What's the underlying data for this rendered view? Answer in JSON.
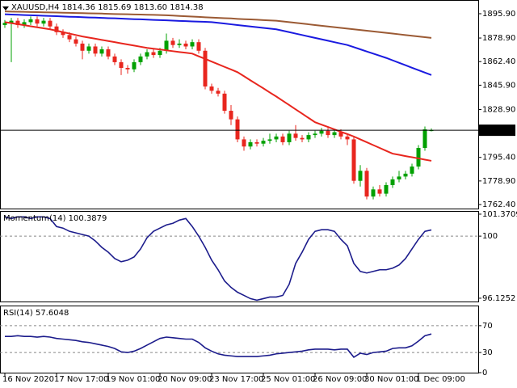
{
  "chart_data": [
    {
      "type": "candlestick",
      "title": "XAUUSD,H4  1814.36 1815.69 1813.60 1814.38",
      "categories": [
        "16 Nov 2020",
        null,
        null,
        null,
        null,
        null,
        null,
        null,
        "17 Nov 17:00",
        null,
        null,
        null,
        null,
        null,
        null,
        null,
        "19 Nov 01:00",
        null,
        null,
        null,
        null,
        null,
        null,
        null,
        "20 Nov 09:00",
        null,
        null,
        null,
        null,
        null,
        null,
        null,
        "23 Nov 17:00",
        null,
        null,
        null,
        null,
        null,
        null,
        null,
        "25 Nov 01:00",
        null,
        null,
        null,
        null,
        null,
        null,
        null,
        "26 Nov 09:00",
        null,
        null,
        null,
        null,
        null,
        null,
        null,
        "30 Nov 01:00",
        null,
        null,
        null,
        null,
        null,
        null,
        null,
        "1 Dec 09:00",
        null,
        null
      ],
      "open": [
        1888,
        1889.5,
        1891,
        1888,
        1890,
        1892,
        1889,
        1891,
        1887,
        1883,
        1881,
        1878,
        1875,
        1870,
        1873,
        1868,
        1871,
        1866,
        1862,
        1858,
        1857,
        1862,
        1866,
        1869,
        1867,
        1870,
        1877,
        1874,
        1875,
        1873,
        1876,
        1870,
        1845,
        1842,
        1840,
        1828,
        1822,
        1808,
        1803,
        1806,
        1805,
        1807,
        1808,
        1810,
        1806,
        1812,
        1809,
        1808,
        1811,
        1812,
        1814,
        1811,
        1813,
        1810,
        1808,
        1779,
        1786,
        1768,
        1773,
        1770,
        1776,
        1780,
        1782,
        1784,
        1789,
        1802,
        1814.36
      ],
      "high": [
        1891.5,
        1893,
        1893,
        1892,
        1894,
        1894,
        1893,
        1893,
        1889,
        1885,
        1883,
        1880,
        1877,
        1875,
        1875,
        1873,
        1873,
        1868,
        1864,
        1860,
        1864,
        1868,
        1871,
        1871,
        1872,
        1882,
        1879,
        1878,
        1877,
        1878,
        1878,
        1872,
        1847,
        1844,
        1842,
        1832,
        1824,
        1810,
        1808,
        1808,
        1809,
        1812,
        1812,
        1812,
        1814,
        1818,
        1811,
        1813,
        1814,
        1816,
        1816,
        1815,
        1815,
        1812,
        1810,
        1790,
        1788,
        1775,
        1776,
        1778,
        1782,
        1786,
        1786,
        1791,
        1804,
        1817,
        1815.69
      ],
      "low": [
        1886,
        1862,
        1886,
        1886,
        1888,
        1887,
        1887,
        1885,
        1881,
        1879,
        1876,
        1873,
        1864,
        1868,
        1866,
        1866,
        1864,
        1860,
        1853,
        1854,
        1855,
        1860,
        1864,
        1865,
        1865,
        1868,
        1872,
        1872,
        1871,
        1871,
        1868,
        1843,
        1840,
        1838,
        1826,
        1818,
        1806,
        1800,
        1801,
        1803,
        1803,
        1805,
        1806,
        1804,
        1804,
        1807,
        1806,
        1806,
        1809,
        1810,
        1809,
        1809,
        1808,
        1804,
        1777,
        1775,
        1766,
        1766,
        1768,
        1768,
        1774,
        1778,
        1780,
        1782,
        1787,
        1800,
        1813.6
      ],
      "close": [
        1889.5,
        1891,
        1888,
        1890,
        1892,
        1889,
        1891,
        1887,
        1883,
        1881,
        1878,
        1875,
        1870,
        1873,
        1868,
        1871,
        1866,
        1862,
        1858,
        1857,
        1862,
        1866,
        1869,
        1867,
        1870,
        1877,
        1874,
        1875,
        1873,
        1876,
        1870,
        1845,
        1842,
        1840,
        1828,
        1822,
        1808,
        1803,
        1806,
        1805,
        1807,
        1808,
        1810,
        1806,
        1812,
        1809,
        1808,
        1811,
        1812,
        1814,
        1811,
        1813,
        1810,
        1808,
        1779,
        1786,
        1768,
        1773,
        1770,
        1776,
        1780,
        1782,
        1784,
        1789,
        1802,
        1815,
        1814.38
      ],
      "up_color": "#00a000",
      "down_color": "#e8261e",
      "series": [
        {
          "color": "#9b5a34",
          "values": [
            1897.5,
            1897.4,
            1897.3,
            1897.2,
            1897.1,
            1897,
            1896.9,
            1896.8,
            1896.7,
            1896.6,
            1896.5,
            1896.4,
            1896.3,
            1896.2,
            1896.1,
            1896,
            1895.8,
            1895.7,
            1895.6,
            1895.5,
            1895.4,
            1895.3,
            1895.2,
            1895.1,
            1895,
            1894.8,
            1894.6,
            1894.3,
            1894.1,
            1893.9,
            1893.7,
            1893.4,
            1893.2,
            1893,
            1892.8,
            1892.6,
            1892.3,
            1892.1,
            1891.9,
            1891.7,
            1891.4,
            1891.2,
            1891,
            1890.5,
            1890,
            1889.5,
            1889,
            1888.5,
            1888,
            1887.5,
            1887,
            1886.5,
            1886,
            1885.5,
            1885,
            1884.5,
            1884,
            1883.5,
            1883,
            1882.5,
            1882,
            1881.5,
            1881,
            1880.5,
            1880,
            1879.5,
            1879
          ]
        },
        {
          "color": "#1a1ae0",
          "values": [
            1895.5,
            1895.3,
            1895.2,
            1895,
            1894.8,
            1894.7,
            1894.5,
            1894.3,
            1894.2,
            1894,
            1893.8,
            1893.7,
            1893.5,
            1893.3,
            1893.2,
            1893,
            1892.8,
            1892.7,
            1892.5,
            1892.3,
            1892.1,
            1892,
            1891.8,
            1891.6,
            1891.4,
            1891.3,
            1891.1,
            1890.9,
            1890.7,
            1890.5,
            1890.4,
            1890.2,
            1890,
            1889.5,
            1889,
            1888.5,
            1888,
            1887.5,
            1887,
            1886.5,
            1886,
            1885.5,
            1885,
            1884,
            1883,
            1882,
            1881,
            1880,
            1879,
            1878,
            1877,
            1876,
            1875,
            1874,
            1872.5,
            1871,
            1869.5,
            1868,
            1866.5,
            1865,
            1863.3,
            1861.6,
            1859.9,
            1858.1,
            1856.4,
            1854.7,
            1853
          ]
        },
        {
          "color": "#e8261e",
          "values": [
            1890,
            1889.3,
            1888.6,
            1887.9,
            1887.1,
            1886.4,
            1885.7,
            1885,
            1884,
            1883,
            1882,
            1881,
            1880,
            1879.2,
            1878.4,
            1877.6,
            1876.8,
            1876,
            1875.2,
            1874.4,
            1873.6,
            1872.8,
            1872,
            1871.4,
            1870.9,
            1870.3,
            1869.7,
            1869.1,
            1868.6,
            1868,
            1866.1,
            1864.3,
            1862.4,
            1860.6,
            1858.7,
            1856.9,
            1855,
            1852.2,
            1849.3,
            1846.5,
            1843.7,
            1840.8,
            1838,
            1835,
            1832,
            1829,
            1826,
            1823,
            1820,
            1818.3,
            1816.7,
            1815,
            1813.3,
            1811.7,
            1810,
            1808,
            1806,
            1804,
            1802,
            1800,
            1798,
            1797.2,
            1796.3,
            1795.5,
            1794.7,
            1793.8,
            1793
          ]
        }
      ],
      "ylim": [
        1759.6,
        1905.5
      ],
      "yticks": [
        {
          "value": 1895.9,
          "label": "1895.90"
        },
        {
          "value": 1878.9,
          "label": "1878.90"
        },
        {
          "value": 1862.4,
          "label": "1862.40"
        },
        {
          "value": 1845.9,
          "label": "1845.90"
        },
        {
          "value": 1828.9,
          "label": "1828.90"
        },
        {
          "value": 1795.4,
          "label": "1795.40"
        },
        {
          "value": 1778.9,
          "label": "1778.90"
        },
        {
          "value": 1762.4,
          "label": "1762.40"
        }
      ]
    },
    {
      "type": "line",
      "title": "Momentum(14) 100.3879",
      "series": [
        {
          "color": "#1c1c8c",
          "values": [
            101.2,
            101.1,
            101.2,
            101.2,
            101.1,
            101.2,
            101.2,
            101.1,
            100.6,
            100.5,
            100.3,
            100.2,
            100.1,
            100.0,
            99.7,
            99.3,
            99.0,
            98.6,
            98.4,
            98.5,
            98.7,
            99.2,
            99.9,
            100.3,
            100.5,
            100.7,
            100.8,
            101.0,
            101.1,
            100.6,
            100.0,
            99.3,
            98.5,
            97.9,
            97.2,
            96.8,
            96.5,
            96.3,
            96.1,
            96.0,
            96.1,
            96.2,
            96.2,
            96.3,
            97.0,
            98.3,
            99.0,
            99.8,
            100.3,
            100.4,
            100.4,
            100.3,
            99.8,
            99.4,
            98.3,
            97.8,
            97.7,
            97.8,
            97.9,
            97.9,
            98.0,
            98.2,
            98.6,
            99.2,
            99.8,
            100.3,
            100.3879
          ]
        }
      ],
      "ylim": [
        95.92,
        101.57
      ],
      "yticks": [
        101.3709,
        100,
        96.1252
      ],
      "levels": [
        100
      ]
    },
    {
      "type": "line",
      "title": "RSI(14) 57.6048",
      "series": [
        {
          "color": "#1c1c8c",
          "values": [
            54,
            54,
            55,
            54,
            54,
            53,
            54,
            53,
            51,
            50,
            49,
            48,
            46,
            45,
            43,
            41,
            39,
            36,
            31,
            30,
            32,
            36,
            41,
            46,
            51,
            53,
            52,
            51,
            50,
            50,
            45,
            37,
            32,
            28,
            26,
            25,
            24,
            24,
            24,
            24,
            25,
            26,
            28,
            29,
            30,
            31,
            32,
            34,
            35,
            35,
            35,
            34,
            35,
            35,
            23,
            29,
            27,
            30,
            31,
            32,
            36,
            37,
            37,
            40,
            47,
            55,
            57.6048
          ]
        }
      ],
      "ylim": [
        0,
        100
      ],
      "yticks": [
        70,
        30,
        0
      ],
      "levels": [
        70,
        30
      ]
    }
  ]
}
